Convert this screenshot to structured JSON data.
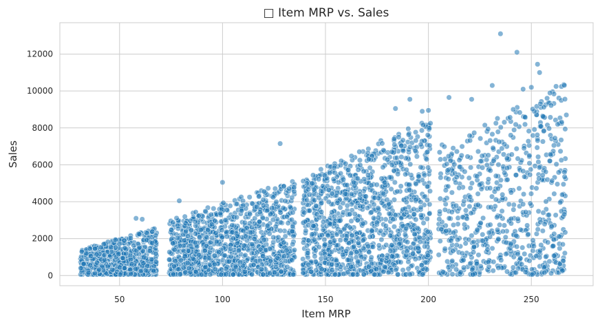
{
  "chart_data": {
    "type": "scatter",
    "title": "□ Item MRP vs. Sales",
    "xlabel": "Item MRP",
    "ylabel": "Sales",
    "xlim": [
      21,
      280
    ],
    "ylim": [
      -550,
      13700
    ],
    "xticks": [
      50,
      100,
      150,
      200,
      250
    ],
    "yticks": [
      0,
      2000,
      4000,
      6000,
      8000,
      10000,
      12000
    ],
    "grid": true,
    "point_color": "#1f77b4",
    "point_alpha": 0.55,
    "clusters": [
      {
        "x_range": [
          31,
          68
        ],
        "y_max_low": 1400,
        "y_max_high": 2600
      },
      {
        "x_range": [
          74,
          135
        ],
        "y_max_low": 3000,
        "y_max_high": 5200
      },
      {
        "x_range": [
          139,
          201
        ],
        "y_max_low": 5300,
        "y_max_high": 8600
      },
      {
        "x_range": [
          205,
          267
        ],
        "y_max_low": 7000,
        "y_max_high": 10500
      }
    ],
    "outliers": [
      {
        "x": 235,
        "y": 13100
      },
      {
        "x": 243,
        "y": 12100
      },
      {
        "x": 253,
        "y": 11450
      },
      {
        "x": 254,
        "y": 11000
      },
      {
        "x": 262,
        "y": 10250
      },
      {
        "x": 250,
        "y": 10200
      },
      {
        "x": 246,
        "y": 10100
      },
      {
        "x": 231,
        "y": 10300
      },
      {
        "x": 128,
        "y": 7150
      },
      {
        "x": 191,
        "y": 9550
      },
      {
        "x": 210,
        "y": 9650
      },
      {
        "x": 221,
        "y": 9550
      },
      {
        "x": 184,
        "y": 9050
      },
      {
        "x": 197,
        "y": 8900
      },
      {
        "x": 200,
        "y": 8950
      },
      {
        "x": 79,
        "y": 4050
      },
      {
        "x": 100,
        "y": 5050
      },
      {
        "x": 61,
        "y": 3050
      },
      {
        "x": 58,
        "y": 3100
      }
    ]
  }
}
